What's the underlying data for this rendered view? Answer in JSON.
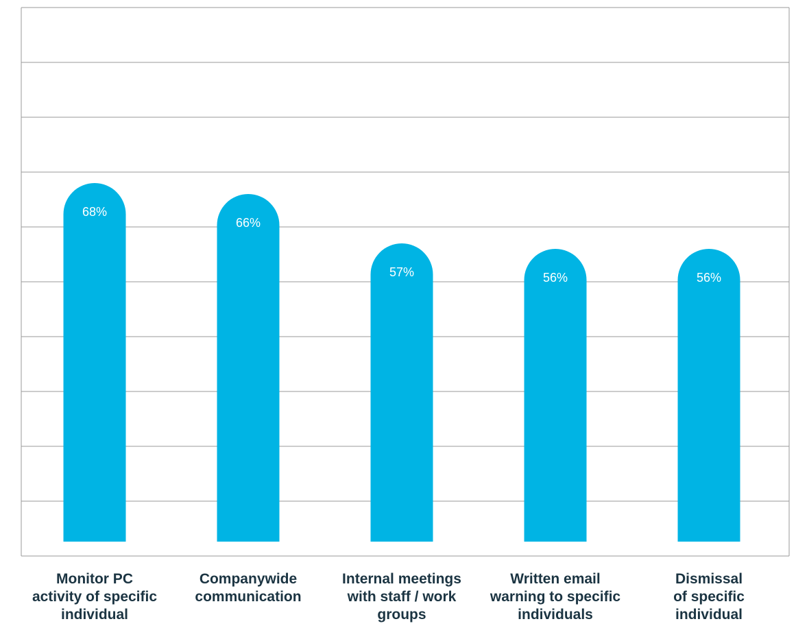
{
  "chart_data": {
    "type": "bar",
    "title": "",
    "xlabel": "",
    "ylabel": "",
    "categories": [
      "Monitor PC activity of specific individual",
      "Companywide communication",
      "Internal meetings with staff / work groups",
      "Written email warning to specific individuals",
      "Dismissal of specific individual"
    ],
    "category_lines": [
      [
        "Monitor PC",
        "activity of specific",
        "individual"
      ],
      [
        "Companywide",
        "communication"
      ],
      [
        "Internal meetings",
        "with staff / work",
        "groups"
      ],
      [
        "Written email",
        "warning to specific",
        "individuals"
      ],
      [
        "Dismissal",
        "of specific",
        "individual"
      ]
    ],
    "values": [
      68,
      66,
      57,
      56,
      56
    ],
    "data_labels": [
      "68%",
      "66%",
      "57%",
      "56%",
      "56%"
    ],
    "ylim": [
      0,
      100
    ],
    "grid": true,
    "legend": "none",
    "bar_color": "#00b4e4",
    "grid_color": "#9a9a9a",
    "label_color": "#1b3442"
  }
}
